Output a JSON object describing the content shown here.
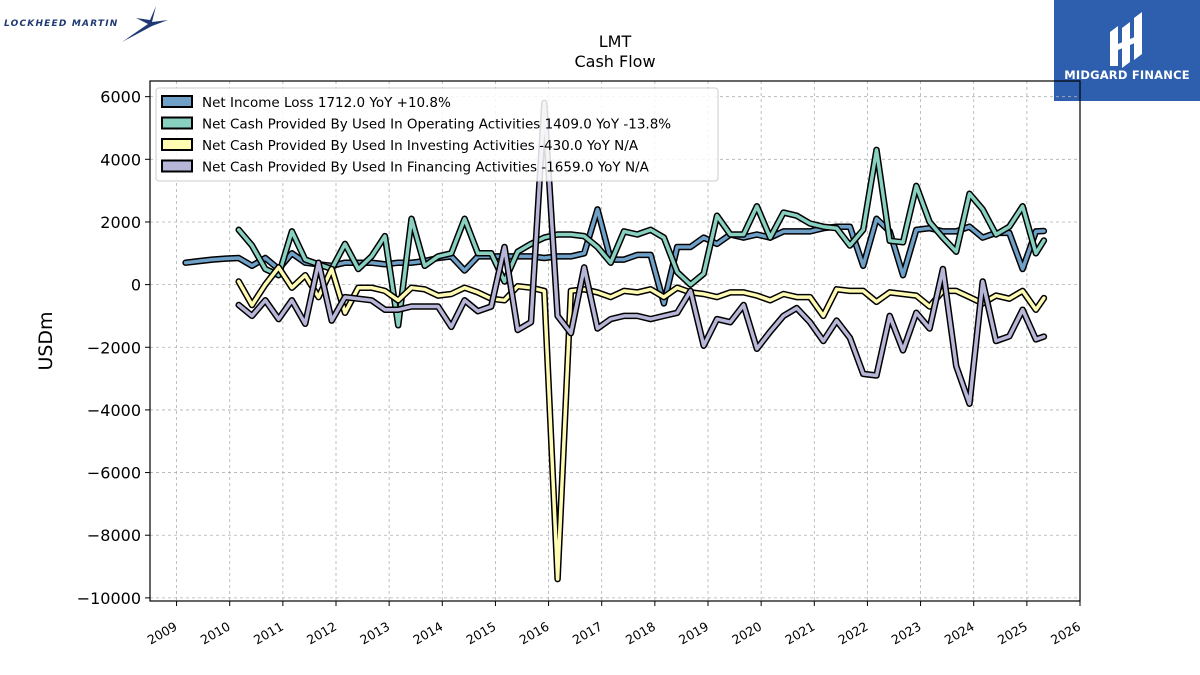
{
  "logos": {
    "left_brand": "LOCKHEED MARTIN",
    "right_brand": "MIDGARD FINANCE",
    "right_brand_bg": "#2d5fae"
  },
  "chart_data": {
    "type": "line",
    "title": "LMT",
    "subtitle": "Cash Flow",
    "xlabel": "",
    "ylabel": "USDm",
    "xlim": [
      2008.5,
      2026
    ],
    "ylim": [
      -10100,
      6500
    ],
    "x_ticks": [
      "2009",
      "2010",
      "2011",
      "2012",
      "2013",
      "2014",
      "2015",
      "2016",
      "2017",
      "2018",
      "2019",
      "2020",
      "2021",
      "2022",
      "2023",
      "2024",
      "2025",
      "2026"
    ],
    "y_ticks": [
      "6000",
      "4000",
      "2000",
      "0",
      "−2000",
      "−4000",
      "−6000",
      "−8000",
      "−10000"
    ],
    "grid": true,
    "legend_position": "top-left",
    "series": [
      {
        "name": "Net Income Loss  1712.0 YoY +10.8%",
        "color": "#6fa0c8",
        "points": [
          [
            2009.17,
            700
          ],
          [
            2009.42,
            750
          ],
          [
            2009.67,
            800
          ],
          [
            2009.92,
            830
          ],
          [
            2010.17,
            850
          ],
          [
            2010.42,
            600
          ],
          [
            2010.67,
            850
          ],
          [
            2010.92,
            500
          ],
          [
            2011.17,
            1000
          ],
          [
            2011.42,
            700
          ],
          [
            2011.67,
            650
          ],
          [
            2011.92,
            600
          ],
          [
            2012.17,
            700
          ],
          [
            2012.42,
            700
          ],
          [
            2012.67,
            700
          ],
          [
            2012.92,
            650
          ],
          [
            2013.17,
            700
          ],
          [
            2013.42,
            700
          ],
          [
            2013.67,
            750
          ],
          [
            2013.92,
            850
          ],
          [
            2014.17,
            900
          ],
          [
            2014.42,
            450
          ],
          [
            2014.67,
            900
          ],
          [
            2014.92,
            900
          ],
          [
            2015.17,
            900
          ],
          [
            2015.42,
            900
          ],
          [
            2015.67,
            900
          ],
          [
            2015.92,
            850
          ],
          [
            2016.17,
            900
          ],
          [
            2016.42,
            900
          ],
          [
            2016.67,
            1000
          ],
          [
            2016.92,
            2400
          ],
          [
            2017.17,
            800
          ],
          [
            2017.42,
            800
          ],
          [
            2017.67,
            950
          ],
          [
            2017.92,
            950
          ],
          [
            2018.17,
            -600
          ],
          [
            2018.42,
            1200
          ],
          [
            2018.67,
            1200
          ],
          [
            2018.92,
            1500
          ],
          [
            2019.17,
            1300
          ],
          [
            2019.42,
            1600
          ],
          [
            2019.67,
            1500
          ],
          [
            2019.92,
            1600
          ],
          [
            2020.17,
            1500
          ],
          [
            2020.42,
            1700
          ],
          [
            2020.67,
            1700
          ],
          [
            2020.92,
            1700
          ],
          [
            2021.17,
            1800
          ],
          [
            2021.42,
            1850
          ],
          [
            2021.67,
            1850
          ],
          [
            2021.92,
            600
          ],
          [
            2022.17,
            2100
          ],
          [
            2022.42,
            1700
          ],
          [
            2022.67,
            300
          ],
          [
            2022.92,
            1750
          ],
          [
            2023.17,
            1800
          ],
          [
            2023.42,
            1700
          ],
          [
            2023.67,
            1700
          ],
          [
            2023.92,
            1850
          ],
          [
            2024.17,
            1500
          ],
          [
            2024.42,
            1650
          ],
          [
            2024.67,
            1650
          ],
          [
            2024.92,
            500
          ],
          [
            2025.17,
            1700
          ],
          [
            2025.32,
            1712
          ]
        ]
      },
      {
        "name": "Net Cash Provided By Used In Operating Activities  1409.0 YoY -13.8%",
        "color": "#88d0c0",
        "points": [
          [
            2010.17,
            1750
          ],
          [
            2010.42,
            1250
          ],
          [
            2010.67,
            500
          ],
          [
            2010.92,
            300
          ],
          [
            2011.17,
            1700
          ],
          [
            2011.42,
            800
          ],
          [
            2011.67,
            650
          ],
          [
            2011.92,
            500
          ],
          [
            2012.17,
            1300
          ],
          [
            2012.42,
            500
          ],
          [
            2012.67,
            900
          ],
          [
            2012.92,
            1550
          ],
          [
            2013.17,
            -1300
          ],
          [
            2013.42,
            2100
          ],
          [
            2013.67,
            600
          ],
          [
            2013.92,
            900
          ],
          [
            2014.17,
            1000
          ],
          [
            2014.42,
            2100
          ],
          [
            2014.67,
            1000
          ],
          [
            2014.92,
            1000
          ],
          [
            2015.17,
            100
          ],
          [
            2015.42,
            1050
          ],
          [
            2015.67,
            1300
          ],
          [
            2015.92,
            1500
          ],
          [
            2016.17,
            1600
          ],
          [
            2016.42,
            1600
          ],
          [
            2016.67,
            1550
          ],
          [
            2016.92,
            1200
          ],
          [
            2017.17,
            700
          ],
          [
            2017.42,
            1700
          ],
          [
            2017.67,
            1600
          ],
          [
            2017.92,
            1750
          ],
          [
            2018.17,
            1500
          ],
          [
            2018.42,
            400
          ],
          [
            2018.67,
            0
          ],
          [
            2018.92,
            350
          ],
          [
            2019.17,
            2200
          ],
          [
            2019.42,
            1600
          ],
          [
            2019.67,
            1600
          ],
          [
            2019.92,
            2500
          ],
          [
            2020.17,
            1500
          ],
          [
            2020.42,
            2300
          ],
          [
            2020.67,
            2200
          ],
          [
            2020.92,
            1950
          ],
          [
            2021.17,
            1850
          ],
          [
            2021.42,
            1800
          ],
          [
            2021.67,
            1250
          ],
          [
            2021.92,
            1750
          ],
          [
            2022.17,
            4300
          ],
          [
            2022.42,
            1400
          ],
          [
            2022.67,
            1350
          ],
          [
            2022.92,
            3150
          ],
          [
            2023.17,
            2000
          ],
          [
            2023.42,
            1500
          ],
          [
            2023.67,
            1050
          ],
          [
            2023.92,
            2900
          ],
          [
            2024.17,
            2400
          ],
          [
            2024.42,
            1600
          ],
          [
            2024.67,
            1850
          ],
          [
            2024.92,
            2500
          ],
          [
            2025.17,
            1000
          ],
          [
            2025.32,
            1409
          ]
        ]
      },
      {
        "name": "Net Cash Provided By Used In Investing Activities  -430.0 YoY N/A",
        "color": "#fffbb3",
        "points": [
          [
            2010.17,
            100
          ],
          [
            2010.42,
            -650
          ],
          [
            2010.67,
            0
          ],
          [
            2010.92,
            550
          ],
          [
            2011.17,
            -100
          ],
          [
            2011.42,
            300
          ],
          [
            2011.67,
            -400
          ],
          [
            2011.92,
            500
          ],
          [
            2012.17,
            -900
          ],
          [
            2012.42,
            -100
          ],
          [
            2012.67,
            -100
          ],
          [
            2012.92,
            -200
          ],
          [
            2013.17,
            -500
          ],
          [
            2013.42,
            -100
          ],
          [
            2013.67,
            -150
          ],
          [
            2013.92,
            -350
          ],
          [
            2014.17,
            -300
          ],
          [
            2014.42,
            -100
          ],
          [
            2014.67,
            -250
          ],
          [
            2014.92,
            -450
          ],
          [
            2015.17,
            -500
          ],
          [
            2015.42,
            -50
          ],
          [
            2015.67,
            -100
          ],
          [
            2015.92,
            -200
          ],
          [
            2016.17,
            -9400
          ],
          [
            2016.42,
            -200
          ],
          [
            2016.67,
            -150
          ],
          [
            2016.92,
            -250
          ],
          [
            2017.17,
            -400
          ],
          [
            2017.42,
            -200
          ],
          [
            2017.67,
            -250
          ],
          [
            2017.92,
            -150
          ],
          [
            2018.17,
            -400
          ],
          [
            2018.42,
            -100
          ],
          [
            2018.67,
            -250
          ],
          [
            2018.92,
            -300
          ],
          [
            2019.17,
            -400
          ],
          [
            2019.42,
            -250
          ],
          [
            2019.67,
            -250
          ],
          [
            2019.92,
            -350
          ],
          [
            2020.17,
            -500
          ],
          [
            2020.42,
            -300
          ],
          [
            2020.67,
            -400
          ],
          [
            2020.92,
            -400
          ],
          [
            2021.17,
            -1000
          ],
          [
            2021.42,
            -150
          ],
          [
            2021.67,
            -200
          ],
          [
            2021.92,
            -200
          ],
          [
            2022.17,
            -550
          ],
          [
            2022.42,
            -250
          ],
          [
            2022.67,
            -300
          ],
          [
            2022.92,
            -350
          ],
          [
            2023.17,
            -700
          ],
          [
            2023.42,
            -200
          ],
          [
            2023.67,
            -200
          ],
          [
            2023.92,
            -400
          ],
          [
            2024.17,
            -600
          ],
          [
            2024.42,
            -350
          ],
          [
            2024.67,
            -450
          ],
          [
            2024.92,
            -200
          ],
          [
            2025.17,
            -800
          ],
          [
            2025.32,
            -430
          ]
        ]
      },
      {
        "name": "Net Cash Provided By Used In Financing Activities  -1659.0 YoY N/A",
        "color": "#b8b6d8",
        "points": [
          [
            2010.17,
            -650
          ],
          [
            2010.42,
            -1000
          ],
          [
            2010.67,
            -500
          ],
          [
            2010.92,
            -1100
          ],
          [
            2011.17,
            -500
          ],
          [
            2011.42,
            -1250
          ],
          [
            2011.67,
            700
          ],
          [
            2011.92,
            -1150
          ],
          [
            2012.17,
            -400
          ],
          [
            2012.42,
            -450
          ],
          [
            2012.67,
            -500
          ],
          [
            2012.92,
            -800
          ],
          [
            2013.17,
            -800
          ],
          [
            2013.42,
            -700
          ],
          [
            2013.67,
            -700
          ],
          [
            2013.92,
            -700
          ],
          [
            2014.17,
            -1350
          ],
          [
            2014.42,
            -500
          ],
          [
            2014.67,
            -850
          ],
          [
            2014.92,
            -700
          ],
          [
            2015.17,
            1200
          ],
          [
            2015.42,
            -1450
          ],
          [
            2015.67,
            -1200
          ],
          [
            2015.92,
            5800
          ],
          [
            2016.17,
            -1000
          ],
          [
            2016.42,
            -1550
          ],
          [
            2016.67,
            550
          ],
          [
            2016.92,
            -1400
          ],
          [
            2017.17,
            -1100
          ],
          [
            2017.42,
            -1000
          ],
          [
            2017.67,
            -1000
          ],
          [
            2017.92,
            -1100
          ],
          [
            2018.17,
            -1000
          ],
          [
            2018.42,
            -900
          ],
          [
            2018.67,
            -200
          ],
          [
            2018.92,
            -1950
          ],
          [
            2019.17,
            -1100
          ],
          [
            2019.42,
            -1200
          ],
          [
            2019.67,
            -650
          ],
          [
            2019.92,
            -2050
          ],
          [
            2020.17,
            -1500
          ],
          [
            2020.42,
            -1000
          ],
          [
            2020.67,
            -750
          ],
          [
            2020.92,
            -1200
          ],
          [
            2021.17,
            -1800
          ],
          [
            2021.42,
            -1150
          ],
          [
            2021.67,
            -1700
          ],
          [
            2021.92,
            -2850
          ],
          [
            2022.17,
            -2900
          ],
          [
            2022.42,
            -1000
          ],
          [
            2022.67,
            -2100
          ],
          [
            2022.92,
            -900
          ],
          [
            2023.17,
            -1400
          ],
          [
            2023.42,
            500
          ],
          [
            2023.67,
            -2600
          ],
          [
            2023.92,
            -3800
          ],
          [
            2024.17,
            100
          ],
          [
            2024.42,
            -1800
          ],
          [
            2024.67,
            -1650
          ],
          [
            2024.92,
            -800
          ],
          [
            2025.17,
            -1750
          ],
          [
            2025.32,
            -1659
          ]
        ]
      }
    ]
  }
}
